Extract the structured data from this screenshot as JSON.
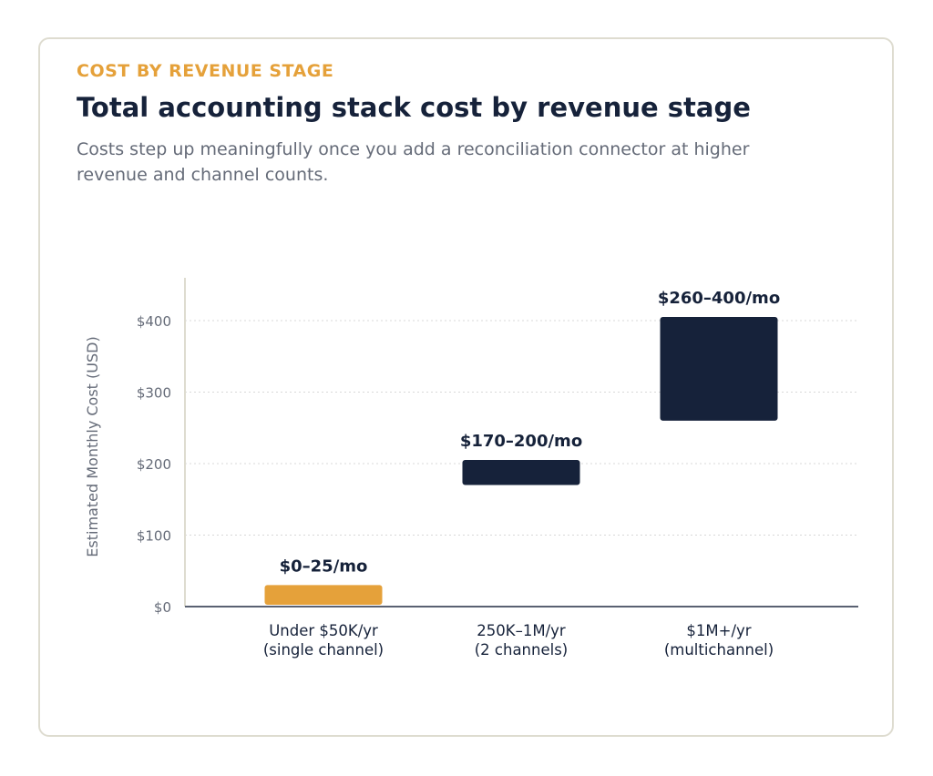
{
  "header": {
    "eyebrow": "COST BY REVENUE STAGE",
    "title": "Total accounting stack cost by revenue stage",
    "subtitle": "Costs step up meaningfully once you add a reconciliation connector at higher revenue and channel counts."
  },
  "colors": {
    "accent": "#e5a13a",
    "navy": "#16223a",
    "muted": "#656b78",
    "grid": "#d8d8d8",
    "left_axis": "#dedcd0",
    "baseline": "#5a6172"
  },
  "chart_data": {
    "type": "bar",
    "subtype": "floating-range",
    "ylabel": "Estimated Monthly Cost (USD)",
    "ylim": [
      0,
      450
    ],
    "yticks": [
      0,
      100,
      200,
      300,
      400
    ],
    "ytick_labels": [
      "$0",
      "$100",
      "$200",
      "$300",
      "$400"
    ],
    "grid": true,
    "categories": [
      [
        "Under $50K/yr",
        "(single channel)"
      ],
      [
        "250K–1M/yr",
        "(2 channels)"
      ],
      [
        "$1M+/yr",
        "(multichannel)"
      ]
    ],
    "ranges": [
      {
        "low": 0,
        "high": 25,
        "label": "$0–25/mo",
        "color": "#e5a13a"
      },
      {
        "low": 170,
        "high": 200,
        "label": "$170–200/mo",
        "color": "#16223a"
      },
      {
        "low": 260,
        "high": 400,
        "label": "$260–400/mo",
        "color": "#16223a"
      }
    ]
  }
}
